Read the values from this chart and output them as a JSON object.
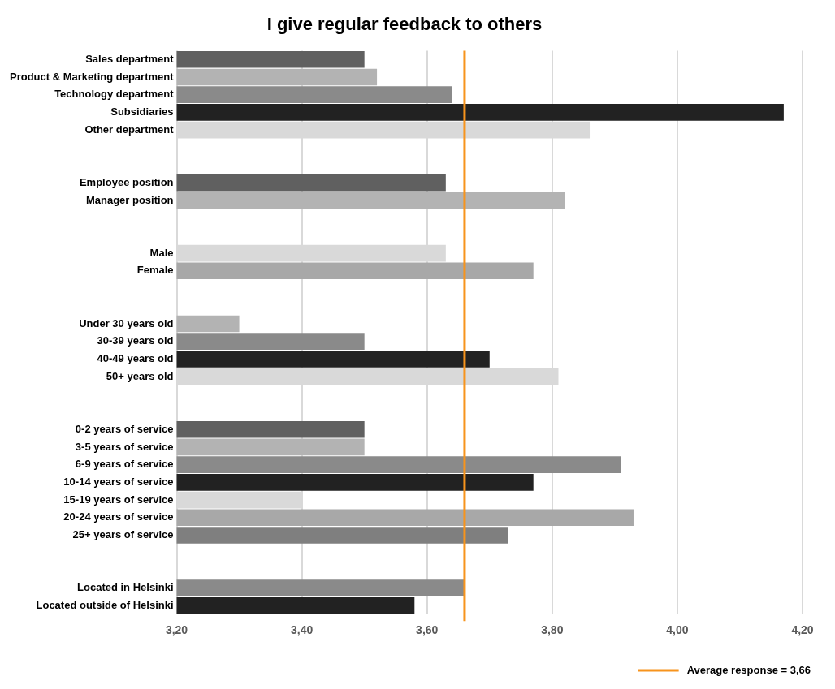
{
  "chart_data": {
    "type": "bar",
    "orientation": "horizontal",
    "title": "I give regular feedback to others",
    "categories": [
      "Sales department",
      "Product & Marketing department",
      "Technology department",
      "Subsidiaries",
      "Other department",
      null,
      null,
      "Employee position",
      "Manager position",
      null,
      null,
      "Male",
      "Female",
      null,
      null,
      "Under 30 years old",
      "30-39 years old",
      "40-49 years old",
      "50+ years old",
      null,
      null,
      "0-2 years of service",
      "3-5 years of service",
      "6-9 years of service",
      "10-14 years of service",
      "15-19 years of service",
      "20-24 years of service",
      "25+ years of service",
      null,
      null,
      "Located in Helsinki",
      "Located outside of Helsinki"
    ],
    "values": [
      3.5,
      3.52,
      3.64,
      4.17,
      3.86,
      null,
      null,
      3.63,
      3.82,
      null,
      null,
      3.63,
      3.77,
      null,
      null,
      3.3,
      3.5,
      3.7,
      3.81,
      null,
      null,
      3.5,
      3.5,
      3.91,
      3.77,
      3.4,
      3.93,
      3.73,
      null,
      null,
      3.66,
      3.58
    ],
    "colors": [
      "#606060",
      "#b3b3b3",
      "#8a8a8a",
      "#222222",
      "#d9d9d9",
      null,
      null,
      "#606060",
      "#b3b3b3",
      null,
      null,
      "#d9d9d9",
      "#a8a8a8",
      null,
      null,
      "#b3b3b3",
      "#8a8a8a",
      "#222222",
      "#d9d9d9",
      null,
      null,
      "#606060",
      "#b3b3b3",
      "#8a8a8a",
      "#222222",
      "#d9d9d9",
      "#a8a8a8",
      "#7f7f7f",
      null,
      null,
      "#8a8a8a",
      "#222222"
    ],
    "xlim": [
      3.2,
      4.2
    ],
    "xticks": [
      {
        "value": 3.2,
        "label": "3,20"
      },
      {
        "value": 3.4,
        "label": "3,40"
      },
      {
        "value": 3.6,
        "label": "3,60"
      },
      {
        "value": 3.8,
        "label": "3,80"
      },
      {
        "value": 4.0,
        "label": "4,00"
      },
      {
        "value": 4.2,
        "label": "4,20"
      }
    ],
    "grid": "x",
    "ref_lines": [
      {
        "axis": "x",
        "value": 3.66,
        "label": "Average response = 3,66",
        "color": "#f7941d"
      }
    ]
  }
}
